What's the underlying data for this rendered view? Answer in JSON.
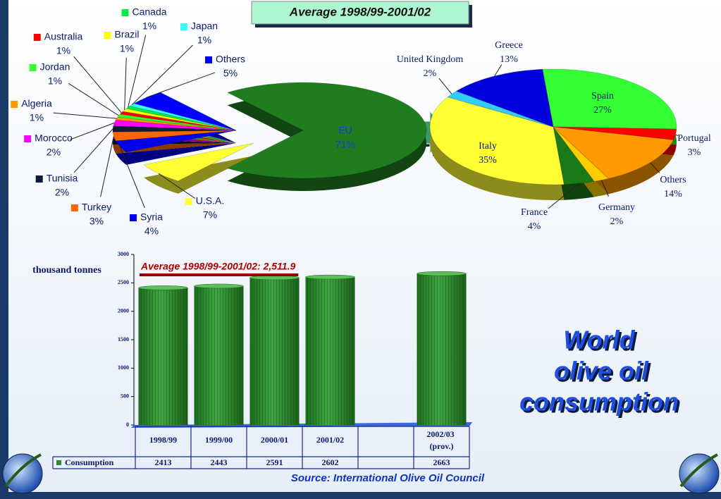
{
  "slide_title_lines": [
    "World",
    "olive oil",
    "consumption"
  ],
  "source": "Source: International Olive Oil Council",
  "chart_data": [
    {
      "type": "pie",
      "title": "Average  1998/99-2001/02",
      "categories": [
        "EU",
        "U.S.A.",
        "Syria",
        "Turkey",
        "Tunisia",
        "Morocco",
        "Algeria",
        "Jordan",
        "Australia",
        "Brazil",
        "Canada",
        "Japan",
        "Others"
      ],
      "values": [
        71,
        7,
        4,
        3,
        2,
        2,
        1,
        1,
        1,
        1,
        1,
        1,
        5
      ],
      "value_labels": [
        "71%",
        "7%",
        "4%",
        "3%",
        "2%",
        "2%",
        "1%",
        "1%",
        "1%",
        "1%",
        "1%",
        "1%",
        "5%"
      ],
      "colors": [
        "#1f7d1f",
        "#ffff33",
        "#0000ee",
        "#ff6600",
        "#0d1a3a",
        "#ff00ff",
        "#ff9900",
        "#33ff33",
        "#ff0000",
        "#ffff00",
        "#00ee44",
        "#33ffff",
        "#0000ff"
      ]
    },
    {
      "type": "pie",
      "categories": [
        "Spain",
        "Portugal",
        "Others",
        "Germany",
        "France",
        "Italy",
        "United Kingdom",
        "Greece"
      ],
      "values": [
        27,
        3,
        14,
        2,
        4,
        35,
        2,
        13
      ],
      "value_labels": [
        "27%",
        "3%",
        "14%",
        "2%",
        "4%",
        "35%",
        "2%",
        "13%"
      ],
      "colors": [
        "#33ff33",
        "#ff0000",
        "#ff9900",
        "#ffcc00",
        "#1a7a1a",
        "#ffff33",
        "#33ccff",
        "#0000dd"
      ]
    },
    {
      "type": "bar",
      "categories": [
        "1998/99",
        "1999/00",
        "2000/01",
        "2001/02",
        null,
        "2002/03 (prov.)"
      ],
      "series": [
        {
          "name": "Consumption",
          "color": "#2e8b2e",
          "values": [
            2413,
            2443,
            2591,
            2602,
            null,
            2663
          ]
        }
      ],
      "ylabel": "thousand tonnes",
      "annotation": "Average  1998/99-2001/02: 2,511.9",
      "ylim": [
        0,
        3000
      ],
      "yticks": [
        0,
        500,
        1000,
        1500,
        2000,
        2500,
        3000
      ]
    }
  ]
}
